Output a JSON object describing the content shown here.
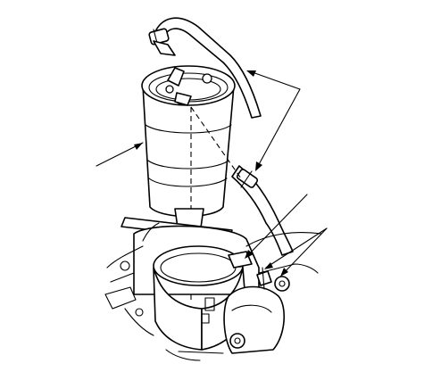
{
  "figure": {
    "kind": "technical-line-drawing",
    "subject": "fuel-filter-assembly",
    "line_color": "#000000",
    "background": "#ffffff",
    "callouts": [
      {
        "id": "filter",
        "target": "filter-canister",
        "label": ""
      },
      {
        "id": "hoses",
        "target": "fuel-hoses",
        "label": ""
      },
      {
        "id": "bracket",
        "target": "mounting-bracket",
        "label": ""
      },
      {
        "id": "bolts",
        "target": "mounting-bolts",
        "label": ""
      }
    ]
  }
}
